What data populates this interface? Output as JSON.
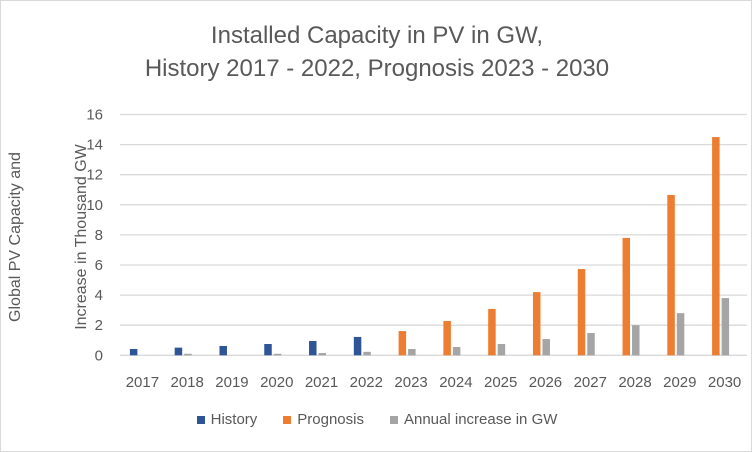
{
  "chart_data": {
    "type": "bar",
    "title_lines": [
      "Installed Capacity in PV in GW,",
      "History 2017 - 2022, Prognosis 2023 - 2030"
    ],
    "ylabel_lines": [
      "Global PV Capacity and",
      "Increase in Thousand GW"
    ],
    "xlabel": "",
    "ylim": [
      0,
      16
    ],
    "yticks": [
      0,
      2,
      4,
      6,
      8,
      10,
      12,
      14,
      16
    ],
    "grid": true,
    "legend": "bottom",
    "categories": [
      "2017",
      "2018",
      "2019",
      "2020",
      "2021",
      "2022",
      "2023",
      "2024",
      "2025",
      "2026",
      "2027",
      "2028",
      "2029",
      "2030"
    ],
    "series": [
      {
        "name": "History",
        "color": "#2f5597",
        "values": [
          0.42,
          0.51,
          0.62,
          0.75,
          0.95,
          1.22,
          null,
          null,
          null,
          null,
          null,
          null,
          null,
          null
        ]
      },
      {
        "name": "Prognosis",
        "color": "#ed7d31",
        "values": [
          null,
          null,
          null,
          null,
          null,
          null,
          1.61,
          2.28,
          3.08,
          4.2,
          5.73,
          7.8,
          10.65,
          14.5
        ]
      },
      {
        "name": "Annual increase in GW",
        "color": "#a5a5a5",
        "values": [
          null,
          0.1,
          null,
          0.1,
          0.15,
          0.23,
          0.42,
          0.55,
          0.75,
          1.08,
          1.48,
          2.0,
          2.8,
          3.8
        ]
      }
    ]
  }
}
